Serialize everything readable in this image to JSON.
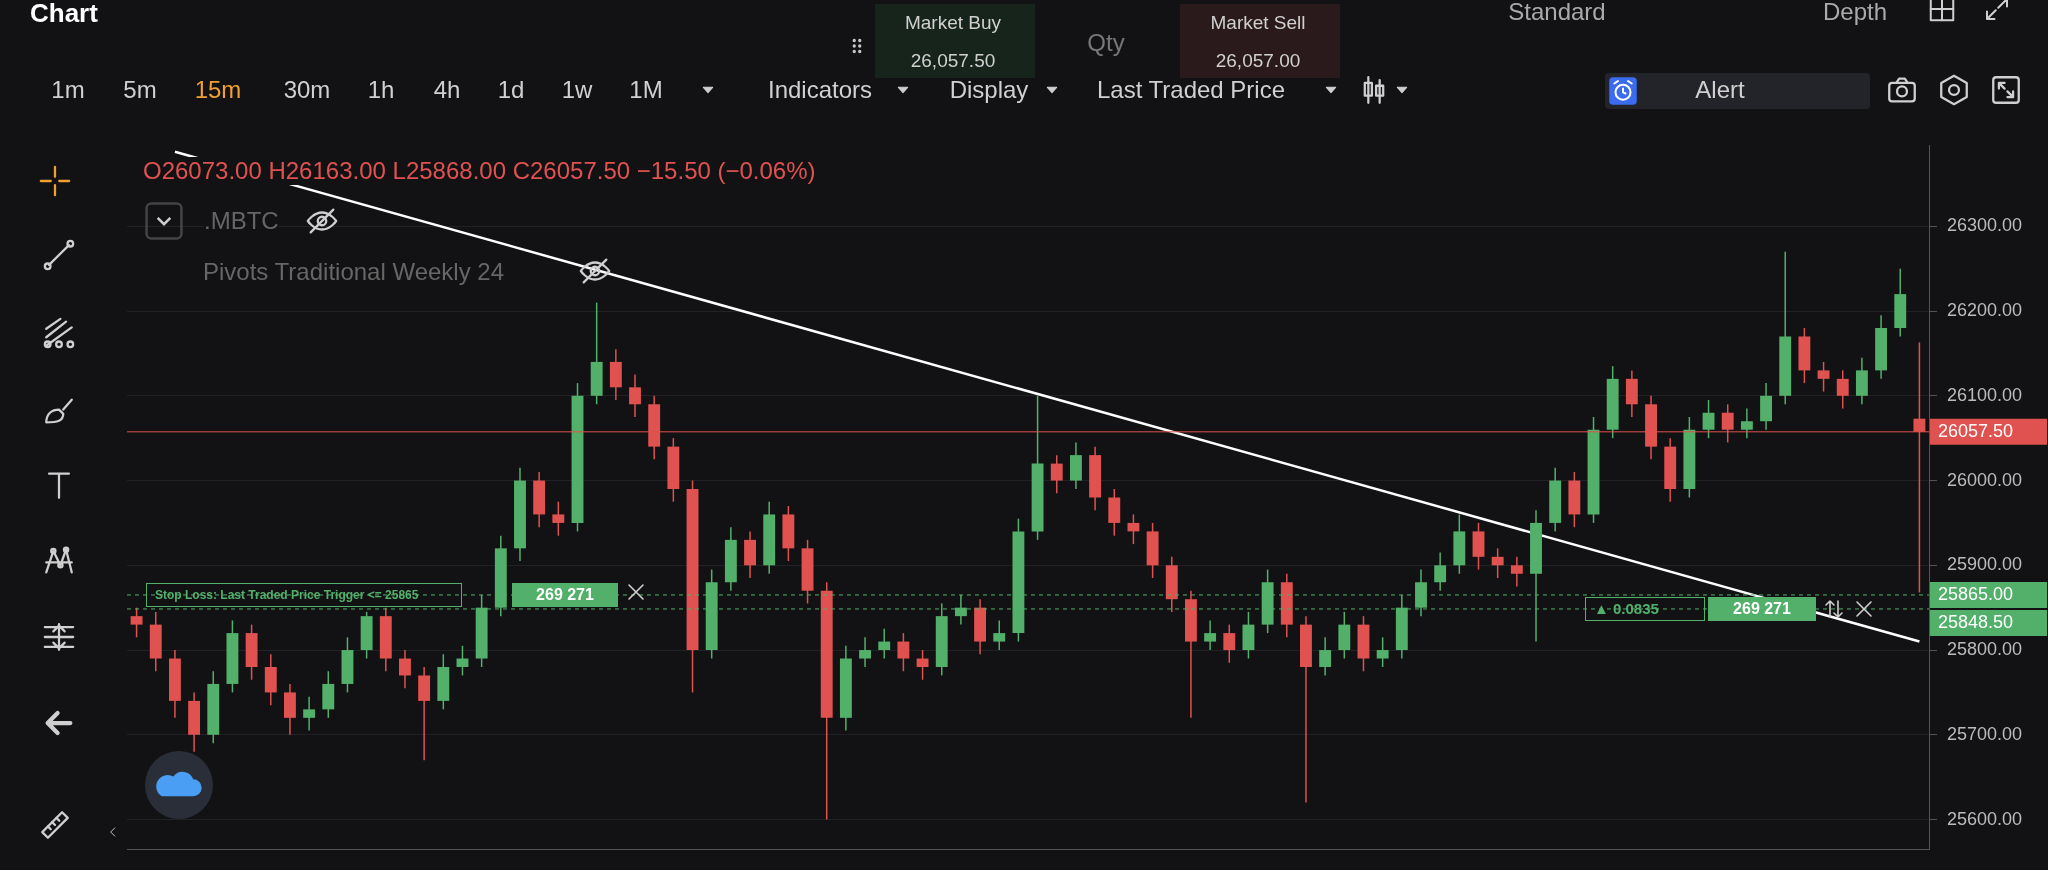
{
  "chart_data": {
    "type": "candlestick",
    "title": "Chart",
    "categories": [
      null,
      null,
      null,
      null,
      null,
      null,
      null,
      null,
      null,
      null,
      null,
      null,
      null,
      null,
      null,
      null,
      null,
      null,
      null,
      null,
      null,
      null,
      null,
      null,
      null,
      null,
      null,
      null,
      null,
      null,
      null,
      null,
      null,
      null,
      null,
      null,
      null,
      null,
      null,
      null,
      null,
      null,
      null,
      null,
      null,
      null,
      null,
      null,
      null,
      null,
      null,
      null,
      null,
      null,
      null,
      null,
      null,
      null,
      null,
      null,
      null,
      null,
      null,
      null,
      null,
      null,
      null,
      null,
      null,
      null,
      null,
      null,
      null,
      null,
      null,
      null,
      null,
      null,
      null,
      null,
      null,
      null,
      null,
      null,
      null,
      null,
      null,
      null,
      null,
      null,
      null,
      null,
      null,
      null
    ],
    "ohlc": [
      [
        25840,
        25850,
        25815,
        25830
      ],
      [
        25830,
        25845,
        25775,
        25790
      ],
      [
        25790,
        25800,
        25720,
        25740
      ],
      [
        25740,
        25750,
        25680,
        25700
      ],
      [
        25700,
        25775,
        25690,
        25760
      ],
      [
        25760,
        25835,
        25750,
        25820
      ],
      [
        25820,
        25830,
        25765,
        25780
      ],
      [
        25780,
        25795,
        25735,
        25750
      ],
      [
        25750,
        25760,
        25700,
        25720
      ],
      [
        25720,
        25745,
        25705,
        25730
      ],
      [
        25730,
        25775,
        25720,
        25760
      ],
      [
        25760,
        25815,
        25750,
        25800
      ],
      [
        25800,
        25845,
        25790,
        25840
      ],
      [
        25840,
        25850,
        25775,
        25790
      ],
      [
        25790,
        25800,
        25755,
        25770
      ],
      [
        25770,
        25780,
        25670,
        25740
      ],
      [
        25740,
        25795,
        25730,
        25780
      ],
      [
        25780,
        25805,
        25770,
        25790
      ],
      [
        25790,
        25865,
        25780,
        25850
      ],
      [
        25850,
        25935,
        25840,
        25920
      ],
      [
        25920,
        26015,
        25905,
        26000
      ],
      [
        26000,
        26010,
        25945,
        25960
      ],
      [
        25960,
        25975,
        25935,
        25950
      ],
      [
        25950,
        26115,
        25940,
        26100
      ],
      [
        26100,
        26210,
        26090,
        26140
      ],
      [
        26140,
        26155,
        26095,
        26110
      ],
      [
        26110,
        26125,
        26075,
        26090
      ],
      [
        26090,
        26100,
        26025,
        26040
      ],
      [
        26040,
        26050,
        25975,
        25990
      ],
      [
        25990,
        26000,
        25750,
        25800
      ],
      [
        25800,
        25895,
        25790,
        25880
      ],
      [
        25880,
        25945,
        25870,
        25930
      ],
      [
        25930,
        25940,
        25885,
        25900
      ],
      [
        25900,
        25975,
        25890,
        25960
      ],
      [
        25960,
        25970,
        25905,
        25920
      ],
      [
        25920,
        25930,
        25855,
        25870
      ],
      [
        25870,
        25880,
        25600,
        25720
      ],
      [
        25720,
        25805,
        25705,
        25790
      ],
      [
        25790,
        25815,
        25780,
        25800
      ],
      [
        25800,
        25825,
        25790,
        25810
      ],
      [
        25810,
        25820,
        25775,
        25790
      ],
      [
        25790,
        25800,
        25765,
        25780
      ],
      [
        25780,
        25855,
        25770,
        25840
      ],
      [
        25840,
        25865,
        25830,
        25850
      ],
      [
        25850,
        25860,
        25795,
        25810
      ],
      [
        25810,
        25835,
        25800,
        25820
      ],
      [
        25820,
        25955,
        25810,
        25940
      ],
      [
        25940,
        26100,
        25930,
        26020
      ],
      [
        26020,
        26030,
        25985,
        26000
      ],
      [
        26000,
        26045,
        25990,
        26030
      ],
      [
        26030,
        26040,
        25965,
        25980
      ],
      [
        25980,
        25990,
        25935,
        25950
      ],
      [
        25950,
        25960,
        25925,
        25940
      ],
      [
        25940,
        25950,
        25885,
        25900
      ],
      [
        25900,
        25910,
        25845,
        25860
      ],
      [
        25860,
        25870,
        25720,
        25810
      ],
      [
        25810,
        25835,
        25800,
        25820
      ],
      [
        25820,
        25830,
        25785,
        25800
      ],
      [
        25800,
        25845,
        25790,
        25830
      ],
      [
        25830,
        25895,
        25820,
        25880
      ],
      [
        25880,
        25890,
        25815,
        25830
      ],
      [
        25830,
        25840,
        25620,
        25780
      ],
      [
        25780,
        25815,
        25770,
        25800
      ],
      [
        25800,
        25845,
        25790,
        25830
      ],
      [
        25830,
        25840,
        25775,
        25790
      ],
      [
        25790,
        25815,
        25780,
        25800
      ],
      [
        25800,
        25865,
        25790,
        25850
      ],
      [
        25850,
        25895,
        25840,
        25880
      ],
      [
        25880,
        25915,
        25870,
        25900
      ],
      [
        25900,
        25960,
        25890,
        25940
      ],
      [
        25940,
        25950,
        25895,
        25910
      ],
      [
        25910,
        25920,
        25885,
        25900
      ],
      [
        25900,
        25910,
        25875,
        25890
      ],
      [
        25890,
        25965,
        25810,
        25950
      ],
      [
        25950,
        26015,
        25940,
        26000
      ],
      [
        26000,
        26010,
        25945,
        25960
      ],
      [
        25960,
        26075,
        25950,
        26060
      ],
      [
        26060,
        26135,
        26050,
        26120
      ],
      [
        26120,
        26130,
        26075,
        26090
      ],
      [
        26090,
        26100,
        26025,
        26040
      ],
      [
        26040,
        26050,
        25975,
        25990
      ],
      [
        25990,
        26075,
        25980,
        26060
      ],
      [
        26060,
        26095,
        26050,
        26080
      ],
      [
        26080,
        26090,
        26045,
        26060
      ],
      [
        26060,
        26085,
        26050,
        26070
      ],
      [
        26070,
        26115,
        26060,
        26100
      ],
      [
        26100,
        26270,
        26090,
        26170
      ],
      [
        26170,
        26180,
        26115,
        26130
      ],
      [
        26130,
        26140,
        26105,
        26120
      ],
      [
        26120,
        26130,
        26085,
        26100
      ],
      [
        26100,
        26145,
        26090,
        26130
      ],
      [
        26130,
        26195,
        26120,
        26180
      ],
      [
        26180,
        26250,
        26170,
        26220
      ],
      [
        26073.0,
        26163.0,
        25868.0,
        26057.5
      ]
    ],
    "colors": [
      "#e0524f",
      "#e0524f",
      "#e0524f",
      "#e0524f",
      "#53b06b",
      "#53b06b",
      "#e0524f",
      "#e0524f",
      "#e0524f",
      "#53b06b",
      "#53b06b",
      "#53b06b",
      "#53b06b",
      "#e0524f",
      "#e0524f",
      "#e0524f",
      "#53b06b",
      "#53b06b",
      "#53b06b",
      "#53b06b",
      "#53b06b",
      "#e0524f",
      "#e0524f",
      "#53b06b",
      "#53b06b",
      "#e0524f",
      "#e0524f",
      "#e0524f",
      "#e0524f",
      "#e0524f",
      "#53b06b",
      "#53b06b",
      "#e0524f",
      "#53b06b",
      "#e0524f",
      "#e0524f",
      "#e0524f",
      "#53b06b",
      "#53b06b",
      "#53b06b",
      "#e0524f",
      "#e0524f",
      "#53b06b",
      "#53b06b",
      "#e0524f",
      "#53b06b",
      "#53b06b",
      "#53b06b",
      "#e0524f",
      "#53b06b",
      "#e0524f",
      "#e0524f",
      "#e0524f",
      "#e0524f",
      "#e0524f",
      "#e0524f",
      "#53b06b",
      "#e0524f",
      "#53b06b",
      "#53b06b",
      "#e0524f",
      "#e0524f",
      "#53b06b",
      "#53b06b",
      "#e0524f",
      "#53b06b",
      "#53b06b",
      "#53b06b",
      "#53b06b",
      "#53b06b",
      "#e0524f",
      "#e0524f",
      "#e0524f",
      "#53b06b",
      "#53b06b",
      "#e0524f",
      "#53b06b",
      "#53b06b",
      "#e0524f",
      "#e0524f",
      "#e0524f",
      "#53b06b",
      "#53b06b",
      "#e0524f",
      "#53b06b",
      "#53b06b",
      "#53b06b",
      "#e0524f",
      "#e0524f",
      "#e0524f",
      "#53b06b",
      "#53b06b",
      "#53b06b",
      "#e0524f"
    ],
    "series": [
      {
        "type": "line",
        "color": "#ffffff",
        "values": [
          null,
          null,
          26388,
          null,
          null,
          null,
          null,
          null,
          null,
          null,
          null,
          null,
          null,
          null,
          null,
          null,
          null,
          null,
          null,
          null,
          null,
          null,
          null,
          null,
          null,
          null,
          null,
          null,
          null,
          null,
          null,
          null,
          null,
          null,
          null,
          null,
          null,
          null,
          null,
          null,
          null,
          null,
          null,
          null,
          null,
          null,
          null,
          null,
          null,
          null,
          null,
          null,
          null,
          null,
          null,
          null,
          null,
          null,
          null,
          null,
          null,
          null,
          null,
          null,
          null,
          null,
          null,
          null,
          null,
          null,
          null,
          null,
          null,
          null,
          null,
          null,
          null,
          null,
          null,
          null,
          null,
          null,
          null,
          null,
          null,
          null,
          null,
          null,
          null,
          null,
          null,
          null,
          null,
          25810
        ]
      }
    ],
    "ylim": [
      25565,
      26395
    ],
    "yticks": [
      {
        "value": 25600,
        "label": "25600.00"
      },
      {
        "value": 25700,
        "label": "25700.00"
      },
      {
        "value": 25800,
        "label": "25800.00"
      },
      {
        "value": 25900,
        "label": "25900.00"
      },
      {
        "value": 26000,
        "label": "26000.00"
      },
      {
        "value": 26100,
        "label": "26100.00"
      },
      {
        "value": 26200,
        "label": "26200.00"
      },
      {
        "value": 26300,
        "label": "26300.00"
      }
    ],
    "grid": "y",
    "tick_labels": "y",
    "ref_lines": [
      {
        "axis": "y",
        "value": 26057.5,
        "label": "26057.50",
        "color": "#e0524f"
      },
      {
        "axis": "y",
        "value": 25865,
        "label": "25865.00",
        "color": "#53b06b",
        "line_style": "dashed"
      },
      {
        "axis": "y",
        "value": 25848.5,
        "label": "25848.50",
        "color": "#53b06b",
        "line_style": "dashed"
      }
    ],
    "annotations": [
      "1m",
      "5m",
      "15m",
      "30m",
      "1h",
      "4h",
      "1d",
      "1w",
      "1M",
      "Indicators",
      "Display",
      "Last Traded Price",
      "Market Buy",
      "26,057.50",
      "Qty",
      "Market Sell",
      "26,057.00",
      "Standard",
      "Depth",
      "Alert",
      "O26073.00 H26163.00 L25868.00 C26057.50 −15.50 (−0.06%)",
      ".MBTC",
      "Pivots Traditional Weekly 24",
      {
        "text": "Stop Loss: Last Traded Price Trigger <= 25865",
        "y": 25865
      },
      {
        "text": "269 271",
        "y": 25865
      },
      {
        "text": "▲ 0.0835",
        "y": 25848.5
      },
      {
        "text": "269 271",
        "y": 25848.5
      }
    ]
  }
}
